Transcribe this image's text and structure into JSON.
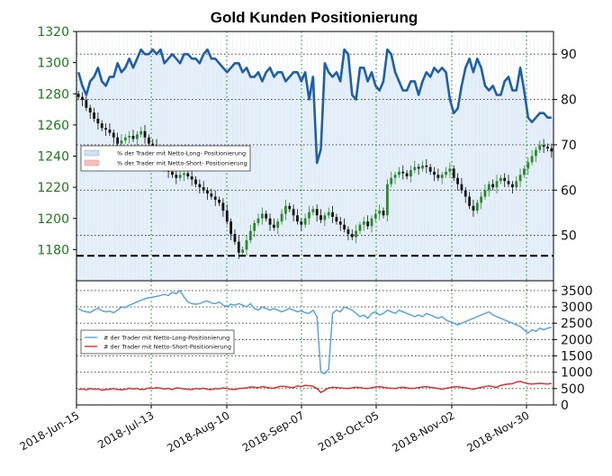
{
  "chart_data": [
    {
      "type": "candlestick+line",
      "title": "Gold Kunden Positionierung",
      "x_ticks": [
        "2018-Jun-15",
        "2018-Jul-13",
        "2018-Aug-10",
        "2018-Sep-07",
        "2018-Oct-05",
        "2018-Nov-02",
        "2018-Nov-30"
      ],
      "left_axis": {
        "ylim": [
          1160,
          1320
        ],
        "ticks": [
          1180,
          1200,
          1220,
          1240,
          1260,
          1280,
          1300,
          1320
        ],
        "color": "#1a7a1a"
      },
      "right_axis": {
        "ylim": [
          40,
          95
        ],
        "ticks": [
          50,
          60,
          70,
          80,
          90
        ]
      },
      "reference_level": 1176,
      "legend": {
        "placement": "left",
        "entries": [
          {
            "label": "% der Trader mit Netto-Long- Positionierung",
            "color": "#cfe3f5"
          },
          {
            "label": "% der Trader mit Netto-Short- Positionierung",
            "color": "#f7c0c0"
          }
        ]
      },
      "series": [
        {
          "name": "% der Trader mit Netto-Long- Positionierung",
          "axis": "right",
          "color": "#1f5fa8",
          "values": [
            86,
            83,
            81,
            84,
            85,
            87,
            84,
            83,
            85,
            85,
            88,
            86,
            87,
            89,
            87,
            89,
            91,
            90,
            90,
            91,
            90,
            91,
            88,
            89,
            90,
            89,
            88,
            90,
            90,
            89,
            89,
            88,
            90,
            91,
            89,
            89,
            88,
            87,
            86,
            87,
            88,
            88,
            86,
            87,
            85,
            85,
            86,
            84,
            86,
            87,
            85,
            86,
            86,
            84,
            85,
            86,
            86,
            84,
            86,
            80,
            85,
            66,
            69,
            88,
            86,
            85,
            86,
            84,
            91,
            90,
            81,
            80,
            87,
            87,
            84,
            86,
            83,
            82,
            84,
            91,
            90,
            86,
            84,
            82,
            82,
            84,
            84,
            81,
            84,
            86,
            85,
            87,
            86,
            87,
            86,
            80,
            77,
            78,
            83,
            87,
            89,
            86,
            89,
            87,
            83,
            82,
            83,
            81,
            81,
            84,
            85,
            82,
            82,
            87,
            82,
            76,
            75,
            76,
            77,
            77,
            76,
            76
          ]
        },
        {
          "name": "% der Trader mit Netto-Short- Positionierung",
          "axis": "right",
          "color": "#f7c0c0",
          "values": []
        },
        {
          "name": "candles",
          "axis": "left",
          "values": [
            1278,
            1276,
            1271,
            1268,
            1264,
            1261,
            1258,
            1257,
            1255,
            1252,
            1248,
            1250,
            1252,
            1253,
            1251,
            1254,
            1256,
            1252,
            1248,
            1247,
            1240,
            1236,
            1232,
            1230,
            1228,
            1226,
            1228,
            1229,
            1227,
            1225,
            1222,
            1220,
            1218,
            1216,
            1214,
            1212,
            1210,
            1205,
            1198,
            1190,
            1185,
            1178,
            1180,
            1186,
            1192,
            1197,
            1200,
            1203,
            1200,
            1196,
            1194,
            1198,
            1203,
            1208,
            1206,
            1202,
            1198,
            1196,
            1200,
            1204,
            1206,
            1202,
            1199,
            1202,
            1204,
            1201,
            1198,
            1196,
            1193,
            1190,
            1188,
            1192,
            1196,
            1198,
            1195,
            1200,
            1203,
            1205,
            1202,
            1222,
            1226,
            1228,
            1230,
            1229,
            1227,
            1231,
            1233,
            1232,
            1234,
            1233,
            1230,
            1228,
            1226,
            1228,
            1230,
            1232,
            1226,
            1222,
            1218,
            1214,
            1208,
            1205,
            1210,
            1214,
            1218,
            1222,
            1220,
            1224,
            1226,
            1224,
            1222,
            1220,
            1224,
            1228,
            1232,
            1236,
            1240,
            1244,
            1247,
            1246,
            1245,
            1243
          ]
        }
      ]
    },
    {
      "type": "line",
      "right_axis": {
        "ylim": [
          0,
          3800
        ],
        "ticks": [
          0,
          500,
          1000,
          1500,
          2000,
          2500,
          3000,
          3500
        ]
      },
      "legend": {
        "placement": "left",
        "entries": [
          {
            "label": "# der Trader mit Netto-Long-Positionierung",
            "color": "#56a6e6"
          },
          {
            "label": "# der Trader mit Netto-Short-Positionierung",
            "color": "#e03030"
          }
        ]
      },
      "series": [
        {
          "name": "# der Trader mit Netto-Long-Positionierung",
          "color": "#56a6e6",
          "values": [
            2950,
            2880,
            2850,
            2830,
            2900,
            2960,
            2880,
            2850,
            2870,
            2820,
            2900,
            3000,
            2980,
            3050,
            3100,
            3150,
            3200,
            3250,
            3280,
            3300,
            3320,
            3350,
            3380,
            3350,
            3450,
            3400,
            3500,
            3300,
            3150,
            3100,
            3080,
            3100,
            3150,
            3180,
            3120,
            3100,
            3150,
            3050,
            3000,
            3080,
            3050,
            3100,
            3050,
            3000,
            3100,
            2950,
            2900,
            3000,
            2950,
            2900,
            2950,
            2900,
            2850,
            2900,
            2950,
            2900,
            2850,
            2880,
            2820,
            2800,
            2900,
            2700,
            1000,
            950,
            1100,
            2800,
            2900,
            2850,
            3000,
            2950,
            2900,
            2800,
            2700,
            2750,
            2650,
            2800,
            2850,
            2750,
            2800,
            2900,
            2850,
            2800,
            2900,
            2850,
            2800,
            2750,
            2700,
            2750,
            2700,
            2800,
            2750,
            2700,
            2650,
            2700,
            2600,
            2550,
            2500,
            2450,
            2500,
            2550,
            2600,
            2650,
            2700,
            2750,
            2800,
            2850,
            2750,
            2700,
            2650,
            2600,
            2550,
            2500,
            2450,
            2400,
            2300,
            2200,
            2300,
            2250,
            2350,
            2300,
            2350,
            2380
          ]
        },
        {
          "name": "# der Trader mit Netto-Short-Positionierung",
          "color": "#e03030",
          "values": [
            470,
            490,
            460,
            500,
            480,
            490,
            450,
            470,
            480,
            500,
            470,
            460,
            480,
            510,
            490,
            500,
            470,
            480,
            520,
            500,
            530,
            510,
            490,
            500,
            470,
            520,
            510,
            490,
            480,
            470,
            500,
            490,
            510,
            480,
            470,
            500,
            490,
            520,
            500,
            480,
            470,
            500,
            510,
            520,
            550,
            540,
            530,
            560,
            540,
            520,
            510,
            550,
            570,
            560,
            540,
            530,
            580,
            560,
            600,
            590,
            570,
            500,
            380,
            450,
            520,
            540,
            530,
            520,
            510,
            500,
            520,
            540,
            530,
            510,
            500,
            530,
            550,
            560,
            540,
            520,
            510,
            500,
            530,
            540,
            520,
            500,
            510,
            530,
            550,
            560,
            540,
            520,
            500,
            480,
            510,
            530,
            550,
            560,
            540,
            520,
            500,
            480,
            510,
            540,
            560,
            580,
            560,
            540,
            600,
            620,
            640,
            650,
            700,
            720,
            680,
            650,
            640,
            650,
            660,
            650,
            640,
            660
          ]
        }
      ]
    }
  ]
}
